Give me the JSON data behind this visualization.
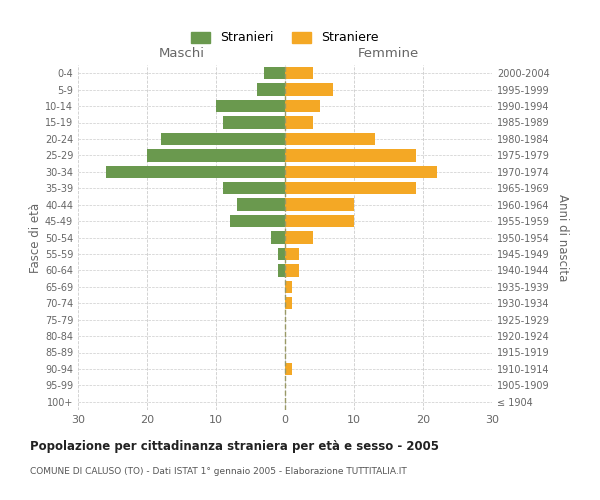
{
  "age_groups": [
    "100+",
    "95-99",
    "90-94",
    "85-89",
    "80-84",
    "75-79",
    "70-74",
    "65-69",
    "60-64",
    "55-59",
    "50-54",
    "45-49",
    "40-44",
    "35-39",
    "30-34",
    "25-29",
    "20-24",
    "15-19",
    "10-14",
    "5-9",
    "0-4"
  ],
  "birth_years": [
    "≤ 1904",
    "1905-1909",
    "1910-1914",
    "1915-1919",
    "1920-1924",
    "1925-1929",
    "1930-1934",
    "1935-1939",
    "1940-1944",
    "1945-1949",
    "1950-1954",
    "1955-1959",
    "1960-1964",
    "1965-1969",
    "1970-1974",
    "1975-1979",
    "1980-1984",
    "1985-1989",
    "1990-1994",
    "1995-1999",
    "2000-2004"
  ],
  "maschi": [
    0,
    0,
    0,
    0,
    0,
    0,
    0,
    0,
    1,
    1,
    2,
    8,
    7,
    9,
    26,
    20,
    18,
    9,
    10,
    4,
    3
  ],
  "femmine": [
    0,
    0,
    1,
    0,
    0,
    0,
    1,
    1,
    2,
    2,
    4,
    10,
    10,
    19,
    22,
    19,
    13,
    4,
    5,
    7,
    4
  ],
  "maschi_color": "#6a994e",
  "femmine_color": "#f4a825",
  "title": "Popolazione per cittadinanza straniera per età e sesso - 2005",
  "subtitle": "COMUNE DI CALUSO (TO) - Dati ISTAT 1° gennaio 2005 - Elaborazione TUTTITALIA.IT",
  "xlabel_left": "Maschi",
  "xlabel_right": "Femmine",
  "ylabel_left": "Fasce di età",
  "ylabel_right": "Anni di nascita",
  "legend_maschi": "Stranieri",
  "legend_femmine": "Straniere",
  "xlim": 30,
  "background_color": "#ffffff",
  "grid_color": "#cccccc",
  "center_line_color": "#aaaaaa",
  "label_color": "#666666"
}
